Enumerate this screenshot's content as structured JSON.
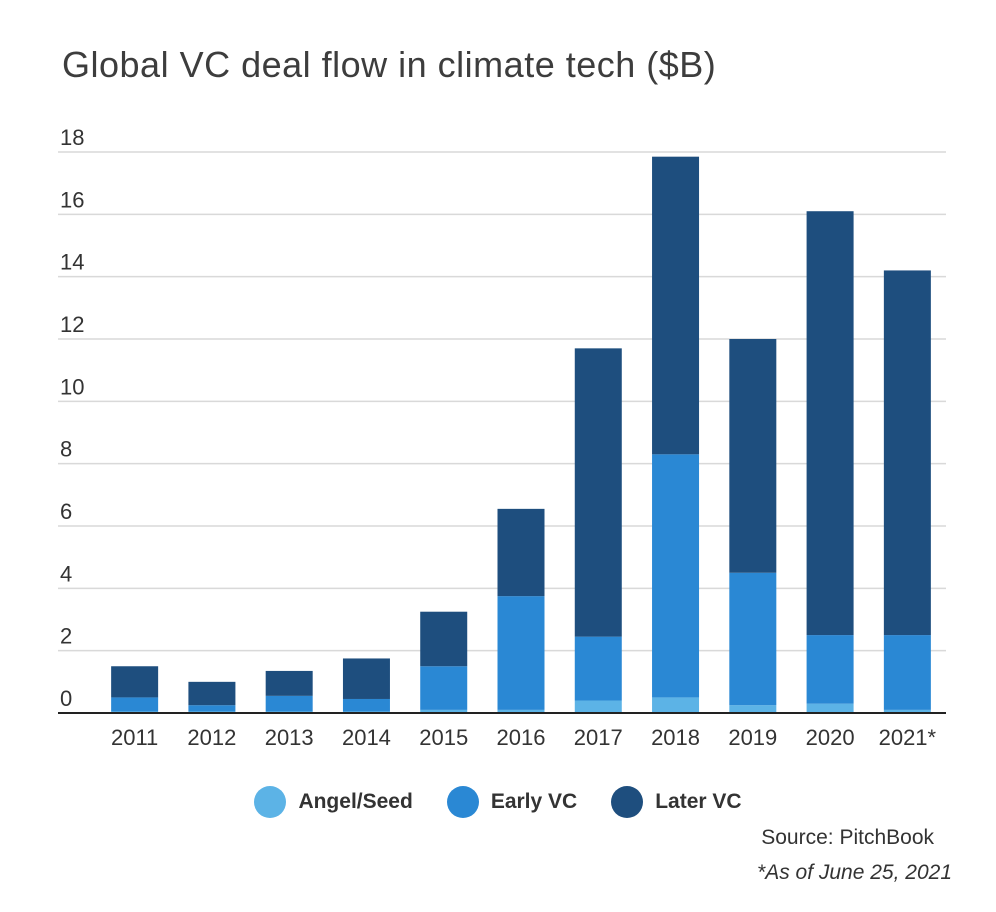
{
  "chart_data": {
    "type": "bar",
    "stacked": true,
    "title": "Global VC deal flow in climate tech ($B)",
    "xlabel": "",
    "ylabel": "",
    "ylim": [
      0,
      18
    ],
    "yticks": [
      0,
      2,
      4,
      6,
      8,
      10,
      12,
      14,
      16,
      18
    ],
    "grid": true,
    "legend_position": "bottom",
    "categories": [
      "2011",
      "2012",
      "2013",
      "2014",
      "2015",
      "2016",
      "2017",
      "2018",
      "2019",
      "2020",
      "2021*"
    ],
    "series": [
      {
        "name": "Angel/Seed",
        "color": "#5cb3e6",
        "values": [
          0.05,
          0.05,
          0.05,
          0.05,
          0.1,
          0.1,
          0.4,
          0.5,
          0.25,
          0.3,
          0.1
        ]
      },
      {
        "name": "Early VC",
        "color": "#2a88d4",
        "values": [
          0.45,
          0.2,
          0.5,
          0.4,
          1.4,
          3.65,
          2.05,
          7.8,
          4.25,
          2.2,
          2.4
        ]
      },
      {
        "name": "Later VC",
        "color": "#1e4e7e",
        "values": [
          1.0,
          0.75,
          0.8,
          1.3,
          1.75,
          2.8,
          9.25,
          9.55,
          7.5,
          13.6,
          11.7
        ]
      }
    ]
  },
  "source": "Source: PitchBook",
  "footnote": "*As of June 25, 2021"
}
